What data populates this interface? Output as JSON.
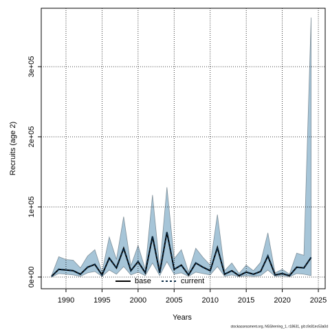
{
  "chart_data": {
    "type": "line",
    "xlabel": "Years",
    "ylabel": "Recruits (age 2)",
    "footer": "stockassessment.org, NSSherring_1, r18631, git:c9c81ec53a0d",
    "x": [
      1988,
      1989,
      1990,
      1991,
      1992,
      1993,
      1994,
      1995,
      1996,
      1997,
      1998,
      1999,
      2000,
      2001,
      2002,
      2003,
      2004,
      2005,
      2006,
      2007,
      2008,
      2009,
      2010,
      2011,
      2012,
      2013,
      2014,
      2015,
      2016,
      2017,
      2018,
      2019,
      2020,
      2021,
      2022,
      2023,
      2024
    ],
    "series": [
      {
        "name": "base",
        "color": "#000000",
        "dash": false,
        "values": [
          1000,
          11000,
          10000,
          9000,
          4000,
          14000,
          18000,
          3000,
          27000,
          13000,
          41000,
          9000,
          22000,
          6000,
          58000,
          6000,
          64000,
          11000,
          17000,
          3000,
          20000,
          14000,
          9000,
          42000,
          4000,
          9000,
          2000,
          7000,
          4000,
          8000,
          30000,
          3000,
          5000,
          2000,
          14000,
          13000,
          28000
        ]
      },
      {
        "name": "current",
        "color": "#0a2a44",
        "dash": true,
        "values": [
          1000,
          11000,
          10000,
          9000,
          4000,
          14000,
          18000,
          3000,
          27000,
          13000,
          41000,
          9000,
          22000,
          6000,
          58000,
          6000,
          64000,
          11000,
          17000,
          3000,
          20000,
          14000,
          9000,
          42000,
          4000,
          9000,
          2000,
          7000,
          4000,
          8000,
          30000,
          3000,
          5000,
          2000,
          14000,
          13000,
          28000
        ]
      }
    ],
    "band": {
      "color": "#a6c5d8",
      "upper": [
        2000,
        29000,
        25000,
        24000,
        13000,
        30000,
        39000,
        7000,
        57000,
        25000,
        86000,
        16000,
        45000,
        11000,
        117000,
        13000,
        128000,
        26000,
        39000,
        7000,
        41000,
        28000,
        17000,
        89000,
        9000,
        20000,
        5000,
        17000,
        9000,
        21000,
        63000,
        6000,
        11000,
        4000,
        34000,
        31000,
        370000
      ],
      "lower": [
        0,
        5000,
        4000,
        3000,
        1000,
        6000,
        8000,
        1000,
        10000,
        4000,
        15000,
        3000,
        7000,
        2000,
        20000,
        2000,
        22000,
        4000,
        6000,
        1000,
        7000,
        5000,
        3000,
        15000,
        1000,
        3000,
        500,
        2000,
        1000,
        2000,
        10000,
        1000,
        2000,
        500,
        5000,
        4000,
        2000
      ]
    },
    "xlim": [
      1986.57,
      2025.95
    ],
    "ylim": [
      -16700,
      383300
    ],
    "xticks": [
      1990,
      1995,
      2000,
      2005,
      2010,
      2015,
      2020,
      2025
    ],
    "yticks": [
      {
        "value": 0,
        "label": "0e+00"
      },
      {
        "value": 100000,
        "label": "1e+05"
      },
      {
        "value": 200000,
        "label": "2e+05"
      },
      {
        "value": 300000,
        "label": "3e+05"
      }
    ],
    "grid": true,
    "legend": "bottom"
  }
}
